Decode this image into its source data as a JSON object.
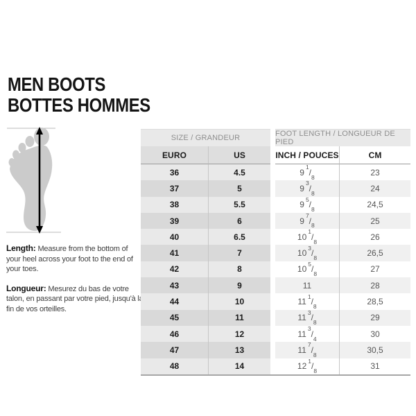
{
  "title": {
    "line1": "MEN BOOTS",
    "line2": "BOTTES HOMMES"
  },
  "instructions": {
    "en_label": "Length:",
    "en_text": "Measure from the bottom of your heel across your foot to the end of your toes.",
    "fr_label": "Longueur:",
    "fr_text": "Mesurez du bas de votre talon, en passant par votre pied, jusqu'à la fin de vos orteilles."
  },
  "table": {
    "group_headers": {
      "size": "SIZE / GRANDEUR",
      "foot_length": "FOOT LENGTH / LONGUEUR DE PIED"
    },
    "columns": {
      "euro": "EURO",
      "us": "US",
      "inch": "INCH / POUCES",
      "cm": "CM"
    },
    "rows": [
      {
        "euro": "36",
        "us": "4.5",
        "inch": "9 1/8",
        "cm": "23"
      },
      {
        "euro": "37",
        "us": "5",
        "inch": "9 3/8",
        "cm": "24"
      },
      {
        "euro": "38",
        "us": "5.5",
        "inch": "9 5/8",
        "cm": "24,5"
      },
      {
        "euro": "39",
        "us": "6",
        "inch": "9 7/8",
        "cm": "25"
      },
      {
        "euro": "40",
        "us": "6.5",
        "inch": "10 1/8",
        "cm": "26"
      },
      {
        "euro": "41",
        "us": "7",
        "inch": "10 3/8",
        "cm": "26,5"
      },
      {
        "euro": "42",
        "us": "8",
        "inch": "10 5/8",
        "cm": "27"
      },
      {
        "euro": "43",
        "us": "9",
        "inch": "11",
        "cm": "28"
      },
      {
        "euro": "44",
        "us": "10",
        "inch": "11 1/8",
        "cm": "28,5"
      },
      {
        "euro": "45",
        "us": "11",
        "inch": "11 3/8",
        "cm": "29"
      },
      {
        "euro": "46",
        "us": "12",
        "inch": "11 3/4",
        "cm": "30"
      },
      {
        "euro": "47",
        "us": "13",
        "inch": "11 7/8",
        "cm": "30,5"
      },
      {
        "euro": "48",
        "us": "14",
        "inch": "12 1/8",
        "cm": "31"
      }
    ]
  },
  "colors": {
    "group_header_bg": "#e9e9e9",
    "column_header_left_bg": "#dedede",
    "size_band_light": "#e9e9e9",
    "size_band_dark": "#d9d9d9",
    "length_band_light": "#ffffff",
    "length_band_dark": "#f0f0f0"
  }
}
